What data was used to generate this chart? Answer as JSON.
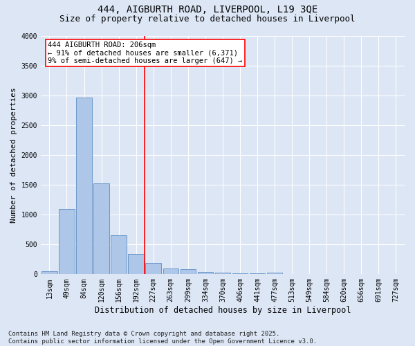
{
  "title": "444, AIGBURTH ROAD, LIVERPOOL, L19 3QE",
  "subtitle": "Size of property relative to detached houses in Liverpool",
  "xlabel": "Distribution of detached houses by size in Liverpool",
  "ylabel": "Number of detached properties",
  "categories": [
    "13sqm",
    "49sqm",
    "84sqm",
    "120sqm",
    "156sqm",
    "192sqm",
    "227sqm",
    "263sqm",
    "299sqm",
    "334sqm",
    "370sqm",
    "406sqm",
    "441sqm",
    "477sqm",
    "513sqm",
    "549sqm",
    "584sqm",
    "620sqm",
    "656sqm",
    "691sqm",
    "727sqm"
  ],
  "values": [
    50,
    1100,
    2960,
    1520,
    650,
    340,
    195,
    100,
    85,
    40,
    30,
    20,
    10,
    25,
    0,
    0,
    0,
    0,
    0,
    0,
    0
  ],
  "bar_color": "#aec6e8",
  "bar_edge_color": "#5b8ec4",
  "vline_x": 5.5,
  "vline_color": "red",
  "annotation_text": "444 AIGBURTH ROAD: 206sqm\n← 91% of detached houses are smaller (6,371)\n9% of semi-detached houses are larger (647) →",
  "annotation_box_color": "white",
  "annotation_box_edge_color": "red",
  "ylim": [
    0,
    4000
  ],
  "yticks": [
    0,
    500,
    1000,
    1500,
    2000,
    2500,
    3000,
    3500,
    4000
  ],
  "background_color": "#dce6f5",
  "grid_color": "white",
  "footnote": "Contains HM Land Registry data © Crown copyright and database right 2025.\nContains public sector information licensed under the Open Government Licence v3.0.",
  "title_fontsize": 10,
  "subtitle_fontsize": 9,
  "xlabel_fontsize": 8.5,
  "ylabel_fontsize": 8,
  "tick_fontsize": 7,
  "annotation_fontsize": 7.5,
  "footnote_fontsize": 6.5
}
